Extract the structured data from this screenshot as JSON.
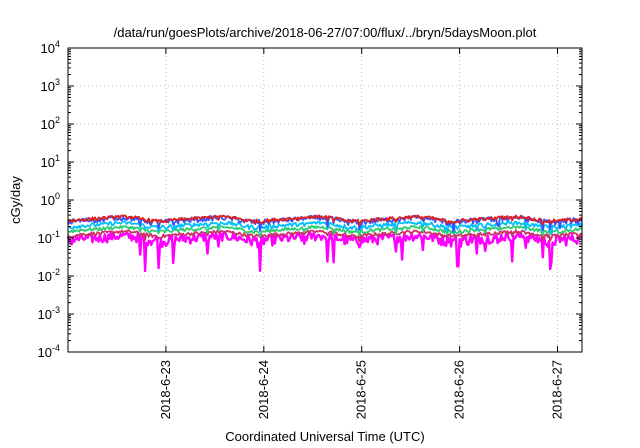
{
  "chart_data": {
    "type": "line",
    "title": "/data/run/goesPlots/archive/2018-06-27/07:00/flux/../bryn/5daysMoon.plot",
    "xlabel": "Coordinated Universal Time (UTC)",
    "ylabel": "cGy/day",
    "y_scale": "log",
    "ylim_exp": [
      -4,
      4
    ],
    "y_tick_labels": [
      {
        "base": "10",
        "exp": "-4"
      },
      {
        "base": "10",
        "exp": "-3"
      },
      {
        "base": "10",
        "exp": "-2"
      },
      {
        "base": "10",
        "exp": "-1"
      },
      {
        "base": "10",
        "exp": "0"
      },
      {
        "base": "10",
        "exp": "1"
      },
      {
        "base": "10",
        "exp": "2"
      },
      {
        "base": "10",
        "exp": "3"
      },
      {
        "base": "10",
        "exp": "4"
      }
    ],
    "xlim_days": [
      0,
      5.25
    ],
    "x_ticks": [
      {
        "label": "2018-6-23",
        "day": 1.0
      },
      {
        "label": "2018-6-24",
        "day": 2.0
      },
      {
        "label": "2018-6-25",
        "day": 3.0
      },
      {
        "label": "2018-6-26",
        "day": 4.0
      },
      {
        "label": "2018-6-27",
        "day": 5.0
      }
    ],
    "grid": true,
    "series": [
      {
        "color": "#ff00ff",
        "base": 0.1,
        "noise": 0.3,
        "dips": 0.85
      },
      {
        "color": "#cc3366",
        "base": 0.13,
        "noise": 0.1,
        "dips": 0.25
      },
      {
        "color": "#2ecc71",
        "base": 0.17,
        "noise": 0.1,
        "dips": 0.25
      },
      {
        "color": "#00bfff",
        "base": 0.22,
        "noise": 0.12,
        "dips": 0.3
      },
      {
        "color": "#3355ff",
        "base": 0.3,
        "noise": 0.16,
        "dips": 0.4
      },
      {
        "color": "#e02020",
        "base": 0.32,
        "noise": 0.1,
        "dips": 0.2
      }
    ]
  }
}
